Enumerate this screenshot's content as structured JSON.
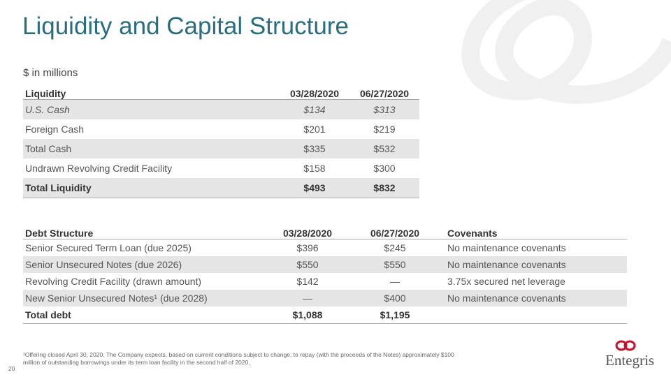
{
  "header": {
    "title": "Liquidity and Capital Structure",
    "subtitle": "$ in millions"
  },
  "liquidity": {
    "header": [
      "Liquidity",
      "03/28/2020",
      "06/27/2020"
    ],
    "rows": [
      [
        "U.S. Cash",
        "$134",
        "$313"
      ],
      [
        "Foreign Cash",
        "$201",
        "$219"
      ],
      [
        "Total Cash",
        "$335",
        "$532"
      ],
      [
        "Undrawn Revolving Credit Facility",
        "$158",
        "$300"
      ],
      [
        "Total Liquidity",
        "$493",
        "$832"
      ]
    ]
  },
  "debt": {
    "header": [
      "Debt Structure",
      "03/28/2020",
      "06/27/2020",
      "Covenants"
    ],
    "rows": [
      [
        "Senior Secured Term Loan (due 2025)",
        "$396",
        "$245",
        "No maintenance covenants"
      ],
      [
        "Senior Unsecured Notes (due 2026)",
        "$550",
        "$550",
        "No maintenance covenants"
      ],
      [
        "Revolving Credit Facility (drawn amount)",
        "$142",
        "—",
        "3.75x secured net leverage"
      ],
      [
        "New Senior Unsecured Notes¹ (due 2028)",
        "—",
        "$400",
        "No maintenance covenants"
      ],
      [
        "Total debt",
        "$1,088",
        "$1,195"
      ]
    ]
  },
  "footnote": "¹Offering closed April 30, 2020. The Company expects, based on current conditions subject to change, to repay (with the proceeds of the Notes) approximately $100 million of outstanding borrowings under its term loan facility in the second half of 2020.",
  "page_number": "20",
  "logo": "Entegris"
}
